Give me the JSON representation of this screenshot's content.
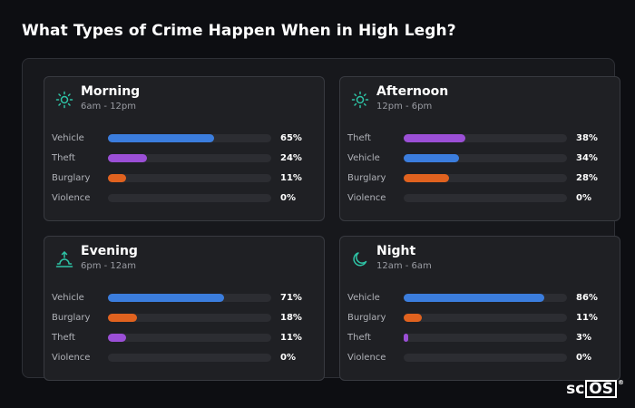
{
  "title": "What Types of Crime Happen When in High Legh?",
  "logo": {
    "main": "sc",
    "boxed": "OS",
    "mark": "®"
  },
  "colors": {
    "Vehicle": "#3b7ddd",
    "Theft": "#9b4fd6",
    "Burglary": "#e0621f",
    "Violence": "#2c2d32",
    "accent": "#2ec4a6"
  },
  "cards": [
    {
      "title": "Morning",
      "subtitle": "6am - 12pm",
      "icon": "sun-icon",
      "rows": [
        {
          "label": "Vehicle",
          "value": "65%",
          "pct": 65,
          "type": "Vehicle"
        },
        {
          "label": "Theft",
          "value": "24%",
          "pct": 24,
          "type": "Theft"
        },
        {
          "label": "Burglary",
          "value": "11%",
          "pct": 11,
          "type": "Burglary"
        },
        {
          "label": "Violence",
          "value": "0%",
          "pct": 0,
          "type": "Violence"
        }
      ]
    },
    {
      "title": "Afternoon",
      "subtitle": "12pm - 6pm",
      "icon": "sun-icon",
      "rows": [
        {
          "label": "Theft",
          "value": "38%",
          "pct": 38,
          "type": "Theft"
        },
        {
          "label": "Vehicle",
          "value": "34%",
          "pct": 34,
          "type": "Vehicle"
        },
        {
          "label": "Burglary",
          "value": "28%",
          "pct": 28,
          "type": "Burglary"
        },
        {
          "label": "Violence",
          "value": "0%",
          "pct": 0,
          "type": "Violence"
        }
      ]
    },
    {
      "title": "Evening",
      "subtitle": "6pm - 12am",
      "icon": "sunset-icon",
      "rows": [
        {
          "label": "Vehicle",
          "value": "71%",
          "pct": 71,
          "type": "Vehicle"
        },
        {
          "label": "Burglary",
          "value": "18%",
          "pct": 18,
          "type": "Burglary"
        },
        {
          "label": "Theft",
          "value": "11%",
          "pct": 11,
          "type": "Theft"
        },
        {
          "label": "Violence",
          "value": "0%",
          "pct": 0,
          "type": "Violence"
        }
      ]
    },
    {
      "title": "Night",
      "subtitle": "12am - 6am",
      "icon": "moon-icon",
      "rows": [
        {
          "label": "Vehicle",
          "value": "86%",
          "pct": 86,
          "type": "Vehicle"
        },
        {
          "label": "Burglary",
          "value": "11%",
          "pct": 11,
          "type": "Burglary"
        },
        {
          "label": "Theft",
          "value": "3%",
          "pct": 3,
          "type": "Theft"
        },
        {
          "label": "Violence",
          "value": "0%",
          "pct": 0,
          "type": "Violence"
        }
      ]
    }
  ]
}
